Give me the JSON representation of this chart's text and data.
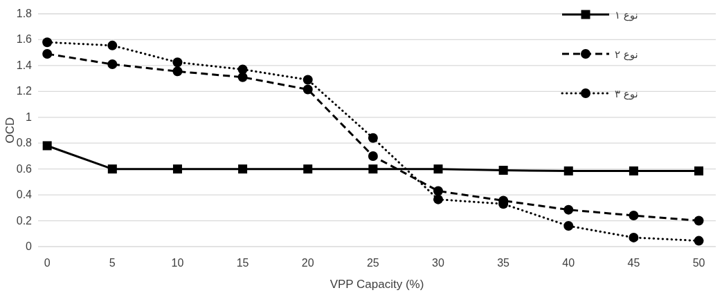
{
  "chart_data": {
    "type": "line",
    "xlabel": "VPP Capacity (%)",
    "ylabel": "OCD",
    "categories": [
      "0",
      "5",
      "10",
      "15",
      "20",
      "25",
      "30",
      "35",
      "40",
      "45",
      "50"
    ],
    "series": [
      {
        "name": "نوع ۱",
        "color": "#000000",
        "marker": "square",
        "line_style": "solid",
        "values": [
          0.78,
          0.6,
          0.6,
          0.6,
          0.6,
          0.6,
          0.6,
          0.59,
          0.585,
          0.585,
          0.585
        ]
      },
      {
        "name": "نوع ۲",
        "color": "#000000",
        "marker": "circle",
        "line_style": "dashed",
        "values": [
          1.49,
          1.41,
          1.355,
          1.31,
          1.215,
          0.7,
          0.43,
          0.355,
          0.285,
          0.24,
          0.2
        ]
      },
      {
        "name": "نوع ۳",
        "color": "#000000",
        "marker": "circle",
        "line_style": "dotted",
        "values": [
          1.58,
          1.555,
          1.425,
          1.37,
          1.29,
          0.84,
          0.365,
          0.33,
          0.16,
          0.07,
          0.045
        ]
      }
    ],
    "ylim": [
      0,
      1.8
    ],
    "yticks": [
      0,
      0.2,
      0.4,
      0.6,
      0.8,
      1,
      1.2,
      1.4,
      1.6,
      1.8
    ],
    "grid": "y",
    "legend": "top right"
  }
}
